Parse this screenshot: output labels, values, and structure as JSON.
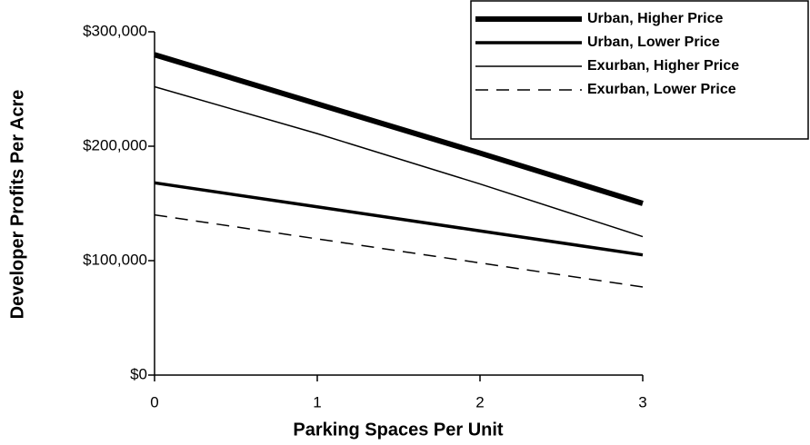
{
  "chart_data": {
    "type": "line",
    "x_label": "Parking Spaces Per Unit",
    "y_label": "Developer Profits Per Acre",
    "x": [
      0,
      1,
      2,
      3
    ],
    "xlim": [
      0,
      3
    ],
    "xticks": [
      0,
      1,
      2,
      3
    ],
    "ylim": [
      0,
      300000
    ],
    "yticks": [
      {
        "value": 0,
        "label": "$0"
      },
      {
        "value": 100000,
        "label": "$100,000"
      },
      {
        "value": 200000,
        "label": "$200,000"
      },
      {
        "value": 300000,
        "label": "$300,000"
      }
    ],
    "legend": "top-right",
    "series": [
      {
        "name": "Urban, Higher Price",
        "color": "#000000",
        "width": 6,
        "dash": false,
        "values": [
          280000,
          237000,
          194000,
          150000
        ]
      },
      {
        "name": "Urban, Lower Price",
        "color": "#000000",
        "width": 3.5,
        "dash": false,
        "values": [
          168000,
          147000,
          126000,
          105000
        ]
      },
      {
        "name": "Exurban, Higher Price",
        "color": "#000000",
        "width": 1.5,
        "dash": false,
        "values": [
          252000,
          211000,
          167000,
          121000
        ]
      },
      {
        "name": "Exurban, Lower Price",
        "color": "#000000",
        "width": 1.5,
        "dash": true,
        "values": [
          140000,
          119000,
          98000,
          77000
        ]
      }
    ]
  }
}
